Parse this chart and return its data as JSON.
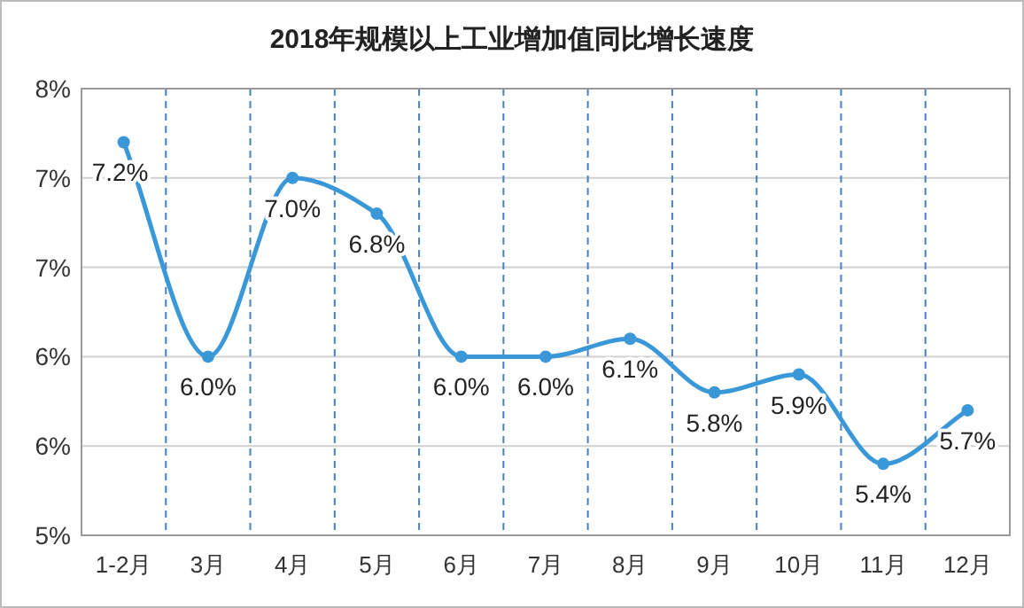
{
  "chart_data": {
    "type": "line",
    "title": "2018年规模以上工业增加值同比增长速度",
    "categories": [
      "1-2月",
      "3月",
      "4月",
      "5月",
      "6月",
      "7月",
      "8月",
      "9月",
      "10月",
      "11月",
      "12月"
    ],
    "series": [
      {
        "color": "#3a98d8",
        "values": [
          7.2,
          6.0,
          7.0,
          6.8,
          6.0,
          6.0,
          6.1,
          5.8,
          5.9,
          5.4,
          5.7
        ]
      }
    ],
    "ylim": [
      5,
      7.5
    ],
    "yticks": [
      {
        "value": 5,
        "label": "5%"
      },
      {
        "value": 5.5,
        "label": "6%"
      },
      {
        "value": 6,
        "label": "6%"
      },
      {
        "value": 6.5,
        "label": "7%"
      },
      {
        "value": 7,
        "label": "7%"
      },
      {
        "value": 7.5,
        "label": "8%"
      }
    ],
    "value_labels": [
      "7.2%",
      "6.0%",
      "7.0%",
      "6.8%",
      "6.0%",
      "6.0%",
      "6.1%",
      "5.8%",
      "5.9%",
      "5.4%",
      "5.7%"
    ],
    "grid": true,
    "marker": "circle",
    "line_style": "solid"
  }
}
